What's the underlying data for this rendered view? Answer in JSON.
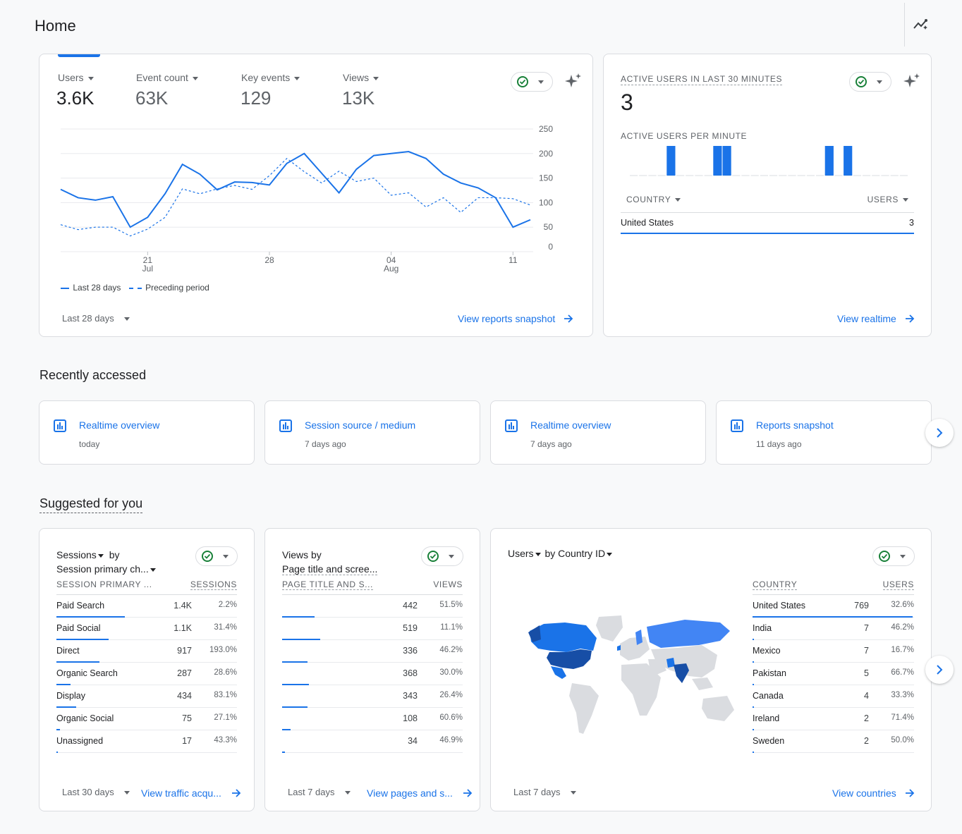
{
  "page": {
    "title": "Home"
  },
  "overview": {
    "metrics": [
      {
        "label": "Users",
        "value": "3.6K"
      },
      {
        "label": "Event count",
        "value": "63K"
      },
      {
        "label": "Key events",
        "value": "129"
      },
      {
        "label": "Views",
        "value": "13K"
      }
    ],
    "legend": {
      "current": "Last 28 days",
      "previous": "Preceding period"
    },
    "date_range": "Last 28 days",
    "link": "View reports snapshot"
  },
  "chart_data": {
    "type": "line",
    "y_ticks": [
      "250",
      "200",
      "150",
      "100",
      "50",
      "0"
    ],
    "ylim": [
      0,
      250
    ],
    "x_ticks": [
      {
        "label": "21",
        "sub": "Jul",
        "index": 5
      },
      {
        "label": "28",
        "sub": "",
        "index": 12
      },
      {
        "label": "04",
        "sub": "Aug",
        "index": 19
      },
      {
        "label": "11",
        "sub": "",
        "index": 26
      }
    ],
    "series": [
      {
        "name": "Last 28 days",
        "values": [
          127,
          110,
          105,
          112,
          50,
          70,
          118,
          178,
          158,
          126,
          142,
          141,
          136,
          180,
          200,
          160,
          120,
          168,
          196,
          200,
          204,
          190,
          158,
          140,
          130,
          110,
          50,
          65
        ]
      },
      {
        "name": "Preceding period",
        "values": [
          55,
          45,
          50,
          50,
          32,
          46,
          70,
          128,
          118,
          128,
          135,
          127,
          155,
          190,
          163,
          140,
          164,
          143,
          150,
          115,
          120,
          91,
          110,
          80,
          110,
          110,
          108,
          95
        ]
      }
    ],
    "grid": true
  },
  "realtime": {
    "title": "ACTIVE USERS IN LAST 30 MINUTES",
    "value": "3",
    "per_minute_title": "ACTIVE USERS PER MINUTE",
    "per_minute": [
      0,
      0,
      0,
      0,
      1,
      0,
      0,
      0,
      0,
      1,
      1,
      0,
      0,
      0,
      0,
      0,
      0,
      0,
      0,
      0,
      0,
      1,
      0,
      1,
      0,
      0,
      0,
      0,
      0,
      0
    ],
    "col_country": "COUNTRY",
    "col_users": "USERS",
    "rows": [
      {
        "country": "United States",
        "users": "3"
      }
    ],
    "link": "View realtime"
  },
  "recent": {
    "title": "Recently accessed",
    "items": [
      {
        "title": "Realtime overview",
        "sub": "today"
      },
      {
        "title": "Session source / medium",
        "sub": "7 days ago"
      },
      {
        "title": "Realtime overview",
        "sub": "7 days ago"
      },
      {
        "title": "Reports snapshot",
        "sub": "11 days ago"
      }
    ]
  },
  "suggested": {
    "title": "Suggested for you",
    "sessions": {
      "title_metric": "Sessions",
      "title_by": "by",
      "title_dim": "Session primary ch...",
      "col_dim": "SESSION PRIMARY ...",
      "col_metric": "SESSIONS",
      "rows": [
        {
          "name": "Paid Search",
          "value": "1.4K",
          "pct": "2.2%",
          "fill": 0.38
        },
        {
          "name": "Paid Social",
          "value": "1.1K",
          "pct": "31.4%",
          "fill": 0.29
        },
        {
          "name": "Direct",
          "value": "917",
          "pct": "193.0%",
          "fill": 0.24
        },
        {
          "name": "Organic Search",
          "value": "287",
          "pct": "28.6%",
          "fill": 0.08
        },
        {
          "name": "Display",
          "value": "434",
          "pct": "83.1%",
          "fill": 0.11
        },
        {
          "name": "Organic Social",
          "value": "75",
          "pct": "27.1%",
          "fill": 0.02
        },
        {
          "name": "Unassigned",
          "value": "17",
          "pct": "43.3%",
          "fill": 0.005
        }
      ],
      "date_range": "Last 30 days",
      "link": "View traffic acqu..."
    },
    "views": {
      "title_line1": "Views by",
      "title_line2": "Page title and scree...",
      "col_dim": "PAGE TITLE AND S...",
      "col_metric": "VIEWS",
      "rows": [
        {
          "name": "",
          "value": "442",
          "pct": "51.5%",
          "fill": 0.18
        },
        {
          "name": "",
          "value": "519",
          "pct": "11.1%",
          "fill": 0.21
        },
        {
          "name": "",
          "value": "336",
          "pct": "46.2%",
          "fill": 0.14
        },
        {
          "name": "",
          "value": "368",
          "pct": "30.0%",
          "fill": 0.15
        },
        {
          "name": "",
          "value": "343",
          "pct": "26.4%",
          "fill": 0.14
        },
        {
          "name": "",
          "value": "108",
          "pct": "60.6%",
          "fill": 0.045
        },
        {
          "name": "",
          "value": "34",
          "pct": "46.9%",
          "fill": 0.015
        }
      ],
      "date_range": "Last 7 days",
      "link": "View pages and s..."
    },
    "countries": {
      "title_metric": "Users",
      "title_by": "by",
      "title_dim": "Country ID",
      "col_dim": "COUNTRY",
      "col_metric": "USERS",
      "rows": [
        {
          "name": "United States",
          "value": "769",
          "pct": "32.6%",
          "fill": 0.99
        },
        {
          "name": "India",
          "value": "7",
          "pct": "46.2%",
          "fill": 0.009
        },
        {
          "name": "Mexico",
          "value": "7",
          "pct": "16.7%",
          "fill": 0.009
        },
        {
          "name": "Pakistan",
          "value": "5",
          "pct": "66.7%",
          "fill": 0.007
        },
        {
          "name": "Canada",
          "value": "4",
          "pct": "33.3%",
          "fill": 0.005
        },
        {
          "name": "Ireland",
          "value": "2",
          "pct": "71.4%",
          "fill": 0.003
        },
        {
          "name": "Sweden",
          "value": "2",
          "pct": "50.0%",
          "fill": 0.003
        }
      ],
      "date_range": "Last 7 days",
      "link": "View countries"
    }
  },
  "colors": {
    "accent": "#1a73e8",
    "dark_blue": "#174ea6",
    "mid_blue": "#4285f4",
    "map_grey": "#dadce0"
  },
  "icons": [
    "insights-icon",
    "sparkle-icon",
    "check-circle-icon",
    "report-icon",
    "chevron-right-icon",
    "arrow-right-icon"
  ]
}
